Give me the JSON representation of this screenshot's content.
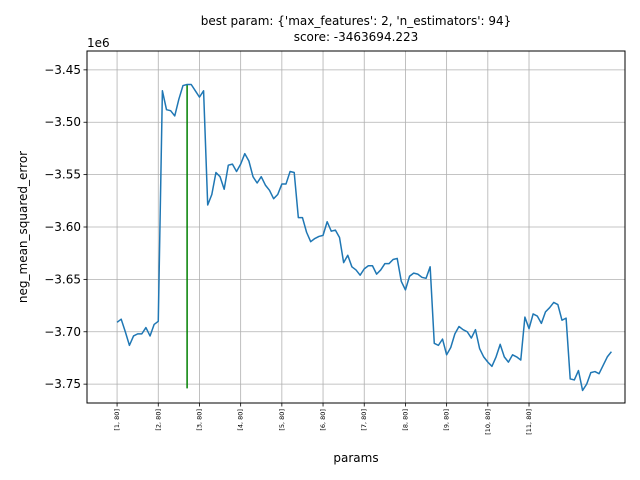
{
  "chart_data": {
    "type": "line",
    "title_line1": "best param: {'max_features': 2, 'n_estimators': 94}",
    "title_line2": "score: -3463694.223",
    "xlabel": "params",
    "ylabel": "neg_mean_squared_error",
    "y_offset_label": "1e6",
    "y_ticks": [
      -3.75,
      -3.7,
      -3.65,
      -3.6,
      -3.55,
      -3.5,
      -3.45
    ],
    "y_tick_labels": [
      "−3.75",
      "−3.70",
      "−3.65",
      "−3.60",
      "−3.55",
      "−3.50",
      "−3.45"
    ],
    "ylim": [
      -3.768,
      -3.432
    ],
    "xlim": [
      -7.3,
      123.3
    ],
    "x_ticks": [
      0,
      10,
      20,
      30,
      40,
      50,
      60,
      70,
      80,
      90,
      100
    ],
    "x_tick_labels": [
      "[1, 80]",
      "[2, 80]",
      "[3, 80]",
      "[4, 80]",
      "[5, 80]",
      "[6, 80]",
      "[7, 80]",
      "[8, 80]",
      "[9, 80]",
      "[10, 80]",
      "[11, 80]"
    ],
    "grid": true,
    "best_index": 17,
    "marker_bottom": -3.754,
    "colors": {
      "line": "#1f77b4",
      "marker": "#008000",
      "grid": "#b0b0b0"
    },
    "series": [
      {
        "values": [
          -3.691,
          -3.688,
          -3.7,
          -3.713,
          -3.704,
          -3.702,
          -3.702,
          -3.696,
          -3.704,
          -3.693,
          -3.69,
          -3.47,
          -3.488,
          -3.489,
          -3.494,
          -3.478,
          -3.465,
          -3.464,
          -3.464,
          -3.47,
          -3.476,
          -3.47,
          -3.579,
          -3.569,
          -3.548,
          -3.552,
          -3.564,
          -3.541,
          -3.54,
          -3.547,
          -3.54,
          -3.53,
          -3.537,
          -3.552,
          -3.558,
          -3.552,
          -3.56,
          -3.565,
          -3.573,
          -3.569,
          -3.559,
          -3.559,
          -3.547,
          -3.548,
          -3.591,
          -3.591,
          -3.605,
          -3.614,
          -3.611,
          -3.609,
          -3.608,
          -3.595,
          -3.604,
          -3.603,
          -3.61,
          -3.634,
          -3.627,
          -3.638,
          -3.641,
          -3.646,
          -3.64,
          -3.637,
          -3.637,
          -3.645,
          -3.641,
          -3.635,
          -3.635,
          -3.631,
          -3.63,
          -3.652,
          -3.66,
          -3.647,
          -3.644,
          -3.645,
          -3.648,
          -3.649,
          -3.638,
          -3.711,
          -3.713,
          -3.707,
          -3.722,
          -3.715,
          -3.702,
          -3.695,
          -3.698,
          -3.7,
          -3.706,
          -3.698,
          -3.716,
          -3.724,
          -3.729,
          -3.733,
          -3.724,
          -3.712,
          -3.724,
          -3.729,
          -3.722,
          -3.724,
          -3.727,
          -3.686,
          -3.697,
          -3.683,
          -3.685,
          -3.692,
          -3.681,
          -3.677,
          -3.672,
          -3.674,
          -3.689,
          -3.687,
          -3.745,
          -3.746,
          -3.737,
          -3.756,
          -3.75,
          -3.739,
          -3.738,
          -3.74,
          -3.732,
          -3.724,
          -3.719
        ]
      }
    ]
  }
}
